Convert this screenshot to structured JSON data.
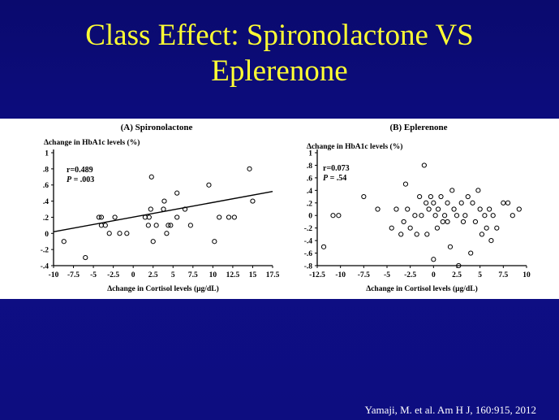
{
  "slide": {
    "title_line1": "Class Effect: Spironolactone VS",
    "title_line2": "Eplerenone",
    "citation": "Yamaji,  M. et al. Am H J, 160:915,  2012"
  },
  "chart_data": [
    {
      "type": "scatter",
      "title": "(A) Spironolactone",
      "ylabel": "Δchange in HbA1c levels (%)",
      "xlabel": "Δchange in Cortisol levels (μg/dL)",
      "xlim": [
        -10,
        17.5
      ],
      "ylim": [
        -0.4,
        1.0
      ],
      "xticks": [
        -10,
        -7.5,
        -5,
        -2.5,
        0,
        2.5,
        5,
        7.5,
        10,
        12.5,
        15,
        17.5
      ],
      "xtick_labels": [
        "-10",
        "-7.5",
        "-5",
        "-2.5",
        "0",
        "2.5",
        "5",
        "7.5",
        "10",
        "12.5",
        "15",
        "17.5"
      ],
      "yticks": [
        -0.4,
        -0.2,
        0,
        0.2,
        0.4,
        0.6,
        0.8,
        1.0
      ],
      "ytick_labels": [
        "-.4",
        "-.2",
        "0",
        ".2",
        ".4",
        ".6",
        ".8",
        "1"
      ],
      "stat_r": "r=0.489",
      "stat_p_label": "P",
      "stat_p_value": " = .003",
      "regression": {
        "x": [
          -10,
          17.5
        ],
        "y": [
          0.02,
          0.52
        ]
      },
      "points": [
        {
          "x": -8.7,
          "y": -0.1
        },
        {
          "x": -6.0,
          "y": -0.3
        },
        {
          "x": -4.3,
          "y": 0.2
        },
        {
          "x": -4.0,
          "y": 0.2
        },
        {
          "x": -4.0,
          "y": 0.1
        },
        {
          "x": -3.5,
          "y": 0.1
        },
        {
          "x": -3.0,
          "y": 0.0
        },
        {
          "x": -2.3,
          "y": 0.2
        },
        {
          "x": -1.7,
          "y": 0.0
        },
        {
          "x": -0.8,
          "y": 0.0
        },
        {
          "x": 1.5,
          "y": 0.2
        },
        {
          "x": 1.9,
          "y": 0.1
        },
        {
          "x": 2.0,
          "y": 0.2
        },
        {
          "x": 2.2,
          "y": 0.3
        },
        {
          "x": 2.3,
          "y": 0.7
        },
        {
          "x": 2.5,
          "y": -0.1
        },
        {
          "x": 2.9,
          "y": 0.1
        },
        {
          "x": 3.8,
          "y": 0.3
        },
        {
          "x": 3.9,
          "y": 0.4
        },
        {
          "x": 4.2,
          "y": 0.0
        },
        {
          "x": 4.4,
          "y": 0.1
        },
        {
          "x": 4.7,
          "y": 0.1
        },
        {
          "x": 5.5,
          "y": 0.5
        },
        {
          "x": 5.5,
          "y": 0.2
        },
        {
          "x": 6.5,
          "y": 0.3
        },
        {
          "x": 7.2,
          "y": 0.1
        },
        {
          "x": 9.5,
          "y": 0.6
        },
        {
          "x": 10.2,
          "y": -0.1
        },
        {
          "x": 10.8,
          "y": 0.2
        },
        {
          "x": 12.0,
          "y": 0.2
        },
        {
          "x": 12.7,
          "y": 0.2
        },
        {
          "x": 14.6,
          "y": 0.8
        },
        {
          "x": 15.0,
          "y": 0.4
        }
      ]
    },
    {
      "type": "scatter",
      "title": "(B) Eplerenone",
      "ylabel": "Δchange in HbA1c levels (%)",
      "xlabel": "Δchange in Cortisol levels (μg/dL)",
      "xlim": [
        -12.5,
        10
      ],
      "ylim": [
        -0.8,
        1.0
      ],
      "xticks": [
        -12.5,
        -10,
        -7.5,
        -5,
        -2.5,
        0,
        2.5,
        5,
        7.5,
        10
      ],
      "xtick_labels": [
        "-12.5",
        "-10",
        "-7.5",
        "-5",
        "-2.5",
        "0",
        "2.5",
        "5",
        "7.5",
        "10"
      ],
      "yticks": [
        -0.8,
        -0.6,
        -0.4,
        -0.2,
        0,
        0.2,
        0.4,
        0.6,
        0.8,
        1.0
      ],
      "ytick_labels": [
        "-.8",
        "-.6",
        "-.4",
        "-.2",
        "0",
        ".2",
        ".4",
        ".6",
        ".8",
        "1"
      ],
      "stat_r": "r=0.073",
      "stat_p_label": "P",
      "stat_p_value": " = .54",
      "points": [
        {
          "x": -11.8,
          "y": -0.5
        },
        {
          "x": -10.8,
          "y": 0.0
        },
        {
          "x": -10.2,
          "y": 0.0
        },
        {
          "x": -7.5,
          "y": 0.3
        },
        {
          "x": -6.0,
          "y": 0.1
        },
        {
          "x": -4.5,
          "y": -0.2
        },
        {
          "x": -4.0,
          "y": 0.1
        },
        {
          "x": -3.5,
          "y": -0.3
        },
        {
          "x": -3.2,
          "y": -0.1
        },
        {
          "x": -3.0,
          "y": 0.5
        },
        {
          "x": -2.8,
          "y": 0.1
        },
        {
          "x": -2.5,
          "y": -0.2
        },
        {
          "x": -2.0,
          "y": 0.0
        },
        {
          "x": -1.8,
          "y": -0.3
        },
        {
          "x": -1.5,
          "y": 0.3
        },
        {
          "x": -1.3,
          "y": 0.0
        },
        {
          "x": -1.0,
          "y": 0.8
        },
        {
          "x": -0.8,
          "y": 0.2
        },
        {
          "x": -0.7,
          "y": -0.3
        },
        {
          "x": -0.5,
          "y": 0.1
        },
        {
          "x": -0.3,
          "y": 0.3
        },
        {
          "x": 0.0,
          "y": -0.7
        },
        {
          "x": 0.0,
          "y": 0.2
        },
        {
          "x": 0.2,
          "y": 0.0
        },
        {
          "x": 0.4,
          "y": -0.2
        },
        {
          "x": 0.5,
          "y": 0.1
        },
        {
          "x": 0.8,
          "y": 0.3
        },
        {
          "x": 1.0,
          "y": -0.1
        },
        {
          "x": 1.2,
          "y": 0.0
        },
        {
          "x": 1.5,
          "y": -0.1
        },
        {
          "x": 1.5,
          "y": 0.2
        },
        {
          "x": 1.8,
          "y": -0.5
        },
        {
          "x": 2.0,
          "y": 0.4
        },
        {
          "x": 2.2,
          "y": 0.1
        },
        {
          "x": 2.5,
          "y": 0.0
        },
        {
          "x": 2.7,
          "y": -0.8
        },
        {
          "x": 3.0,
          "y": 0.2
        },
        {
          "x": 3.2,
          "y": -0.1
        },
        {
          "x": 3.4,
          "y": 0.0
        },
        {
          "x": 3.7,
          "y": 0.3
        },
        {
          "x": 4.0,
          "y": -0.6
        },
        {
          "x": 4.2,
          "y": 0.2
        },
        {
          "x": 4.5,
          "y": -0.1
        },
        {
          "x": 4.8,
          "y": 0.4
        },
        {
          "x": 5.0,
          "y": 0.1
        },
        {
          "x": 5.2,
          "y": -0.3
        },
        {
          "x": 5.5,
          "y": 0.0
        },
        {
          "x": 5.7,
          "y": -0.2
        },
        {
          "x": 6.0,
          "y": 0.1
        },
        {
          "x": 6.2,
          "y": -0.4
        },
        {
          "x": 6.4,
          "y": 0.0
        },
        {
          "x": 6.8,
          "y": -0.2
        },
        {
          "x": 7.5,
          "y": 0.2
        },
        {
          "x": 8.0,
          "y": 0.2
        },
        {
          "x": 8.5,
          "y": 0.0
        },
        {
          "x": 9.2,
          "y": 0.1
        }
      ]
    }
  ]
}
